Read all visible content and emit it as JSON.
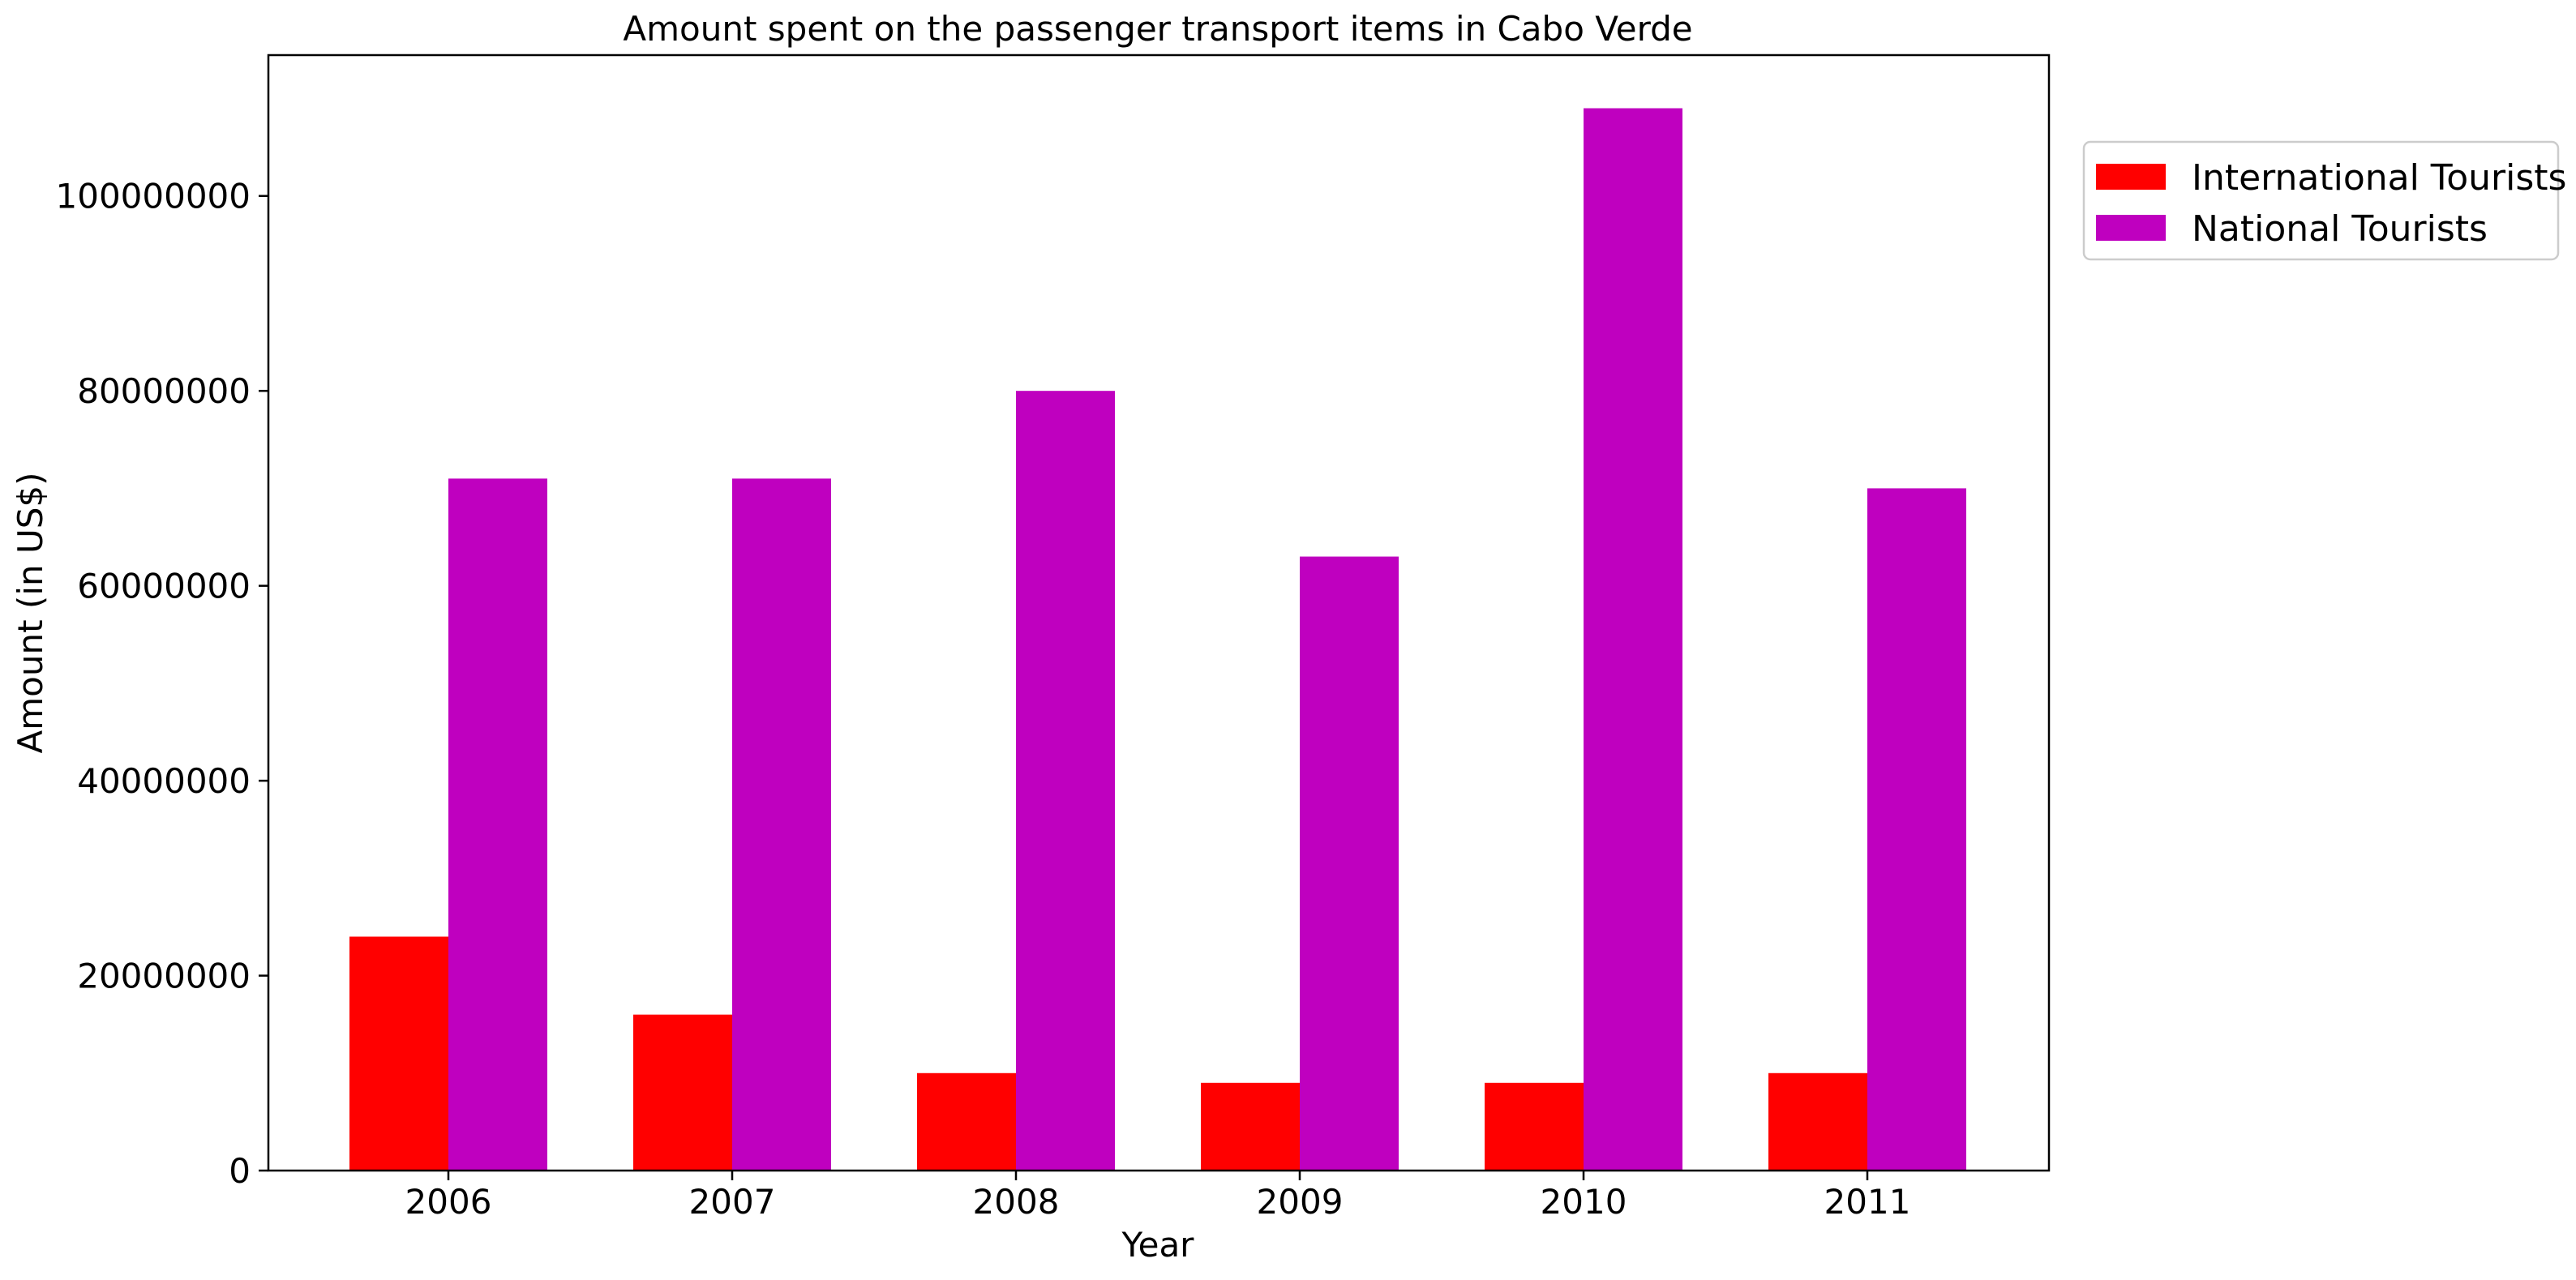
{
  "chart_data": {
    "type": "bar",
    "title": "Amount spent on the passenger transport items in Cabo Verde",
    "xlabel": "Year",
    "ylabel": "Amount (in US$)",
    "categories": [
      "2006",
      "2007",
      "2008",
      "2009",
      "2010",
      "2011"
    ],
    "series": [
      {
        "name": "International Tourists",
        "color": "#ff0000",
        "values": [
          24000000,
          16000000,
          10000000,
          9000000,
          9000000,
          10000000
        ]
      },
      {
        "name": "National Tourists",
        "color": "#bf00bf",
        "values": [
          71000000,
          71000000,
          80000000,
          63000000,
          109000000,
          70000000
        ]
      }
    ],
    "ylim": [
      0,
      114450000
    ],
    "yticks": [
      0,
      20000000,
      40000000,
      60000000,
      80000000,
      100000000
    ],
    "ytick_labels": [
      "0",
      "20000000",
      "40000000",
      "60000000",
      "80000000",
      "100000000"
    ],
    "legend_position": "outside-top-right",
    "grid": false
  }
}
